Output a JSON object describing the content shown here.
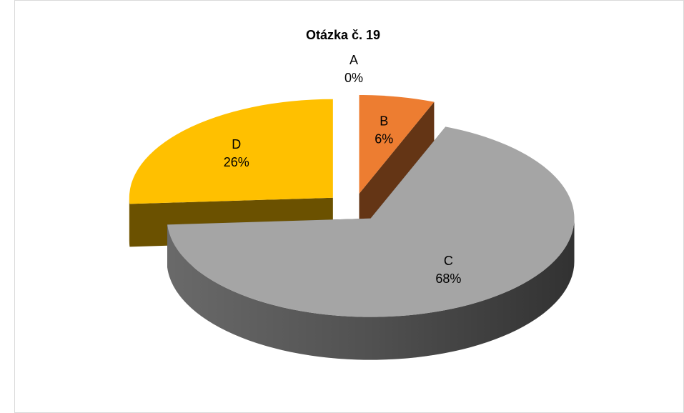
{
  "chart_data": {
    "type": "pie",
    "title": "Otázka č. 19",
    "categories": [
      "A",
      "B",
      "C",
      "D"
    ],
    "values": [
      0,
      6,
      68,
      26
    ],
    "value_labels": [
      "0%",
      "6%",
      "68%",
      "26%"
    ],
    "colors": [
      "#4472c4",
      "#ed7d31",
      "#a5a5a5",
      "#ffc000"
    ]
  }
}
